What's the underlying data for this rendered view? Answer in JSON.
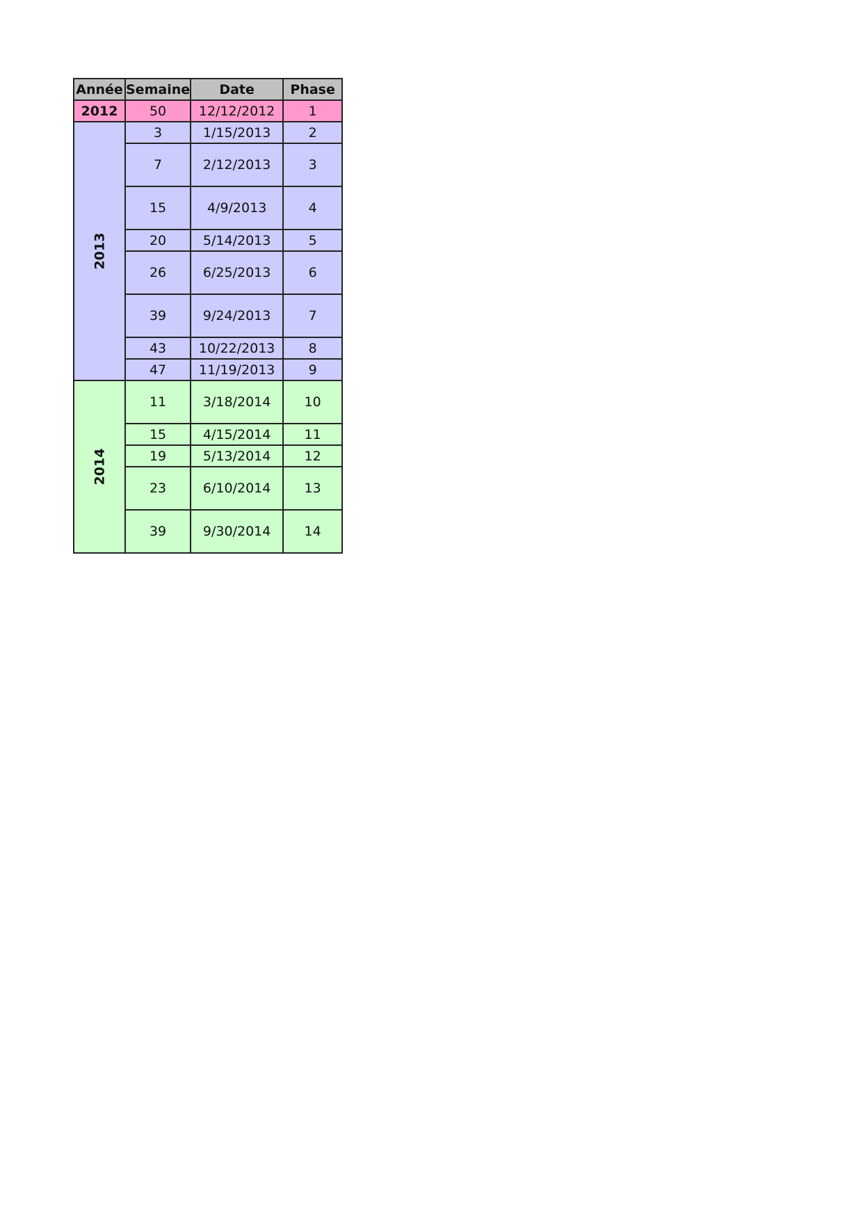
{
  "headers": [
    "Année",
    "Semaine",
    "Date",
    "Phase"
  ],
  "colors": {
    "header": "#c0c0c0",
    "2012": "#ff99cc",
    "2013": "#ccccff",
    "2014": "#ccffcc"
  },
  "groups": [
    {
      "year": "2012",
      "rows": [
        {
          "semaine": "50",
          "date": "12/12/2012",
          "phase": "1",
          "tall": false
        }
      ]
    },
    {
      "year": "2013",
      "rows": [
        {
          "semaine": "3",
          "date": "1/15/2013",
          "phase": "2",
          "tall": false
        },
        {
          "semaine": "7",
          "date": "2/12/2013",
          "phase": "3",
          "tall": true
        },
        {
          "semaine": "15",
          "date": "4/9/2013",
          "phase": "4",
          "tall": true
        },
        {
          "semaine": "20",
          "date": "5/14/2013",
          "phase": "5",
          "tall": false
        },
        {
          "semaine": "26",
          "date": "6/25/2013",
          "phase": "6",
          "tall": true
        },
        {
          "semaine": "39",
          "date": "9/24/2013",
          "phase": "7",
          "tall": true
        },
        {
          "semaine": "43",
          "date": "10/22/2013",
          "phase": "8",
          "tall": false
        },
        {
          "semaine": "47",
          "date": "11/19/2013",
          "phase": "9",
          "tall": false
        }
      ]
    },
    {
      "year": "2014",
      "rows": [
        {
          "semaine": "11",
          "date": "3/18/2014",
          "phase": "10",
          "tall": true
        },
        {
          "semaine": "15",
          "date": "4/15/2014",
          "phase": "11",
          "tall": false
        },
        {
          "semaine": "19",
          "date": "5/13/2014",
          "phase": "12",
          "tall": false
        },
        {
          "semaine": "23",
          "date": "6/10/2014",
          "phase": "13",
          "tall": true
        },
        {
          "semaine": "39",
          "date": "9/30/2014",
          "phase": "14",
          "tall": true
        }
      ]
    }
  ]
}
